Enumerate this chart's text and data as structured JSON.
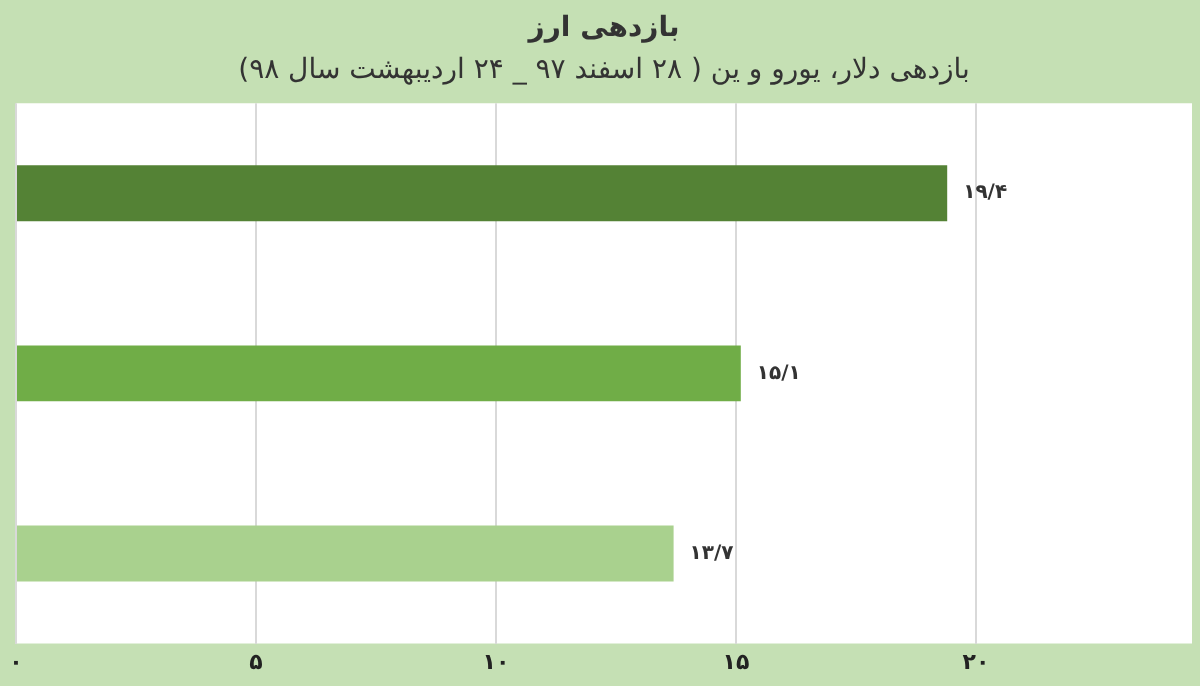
{
  "chart_data": {
    "type": "bar",
    "orientation": "horizontal",
    "title": "بازدهی ارز",
    "subtitle": "بازدهی دلار، یورو و ین ( ۲۸ اسفند ۹۷ _ ۲۴ اردیبهشت سال ۹۸)",
    "categories": [
      null,
      null,
      null
    ],
    "values": [
      19.4,
      15.1,
      13.7
    ],
    "colors": [
      "#548235",
      "#70ad47",
      "#a9d18e"
    ],
    "value_labels": [
      "۱۹/۴",
      "۱۵/۱",
      "۱۳/۷"
    ],
    "xlim": [
      0,
      24.5
    ],
    "xticks": [
      {
        "value": 0,
        "label": "۰"
      },
      {
        "value": 5,
        "label": "۵"
      },
      {
        "value": 10,
        "label": "۱۰"
      },
      {
        "value": 15,
        "label": "۱۵"
      },
      {
        "value": 20,
        "label": "۲۰"
      }
    ],
    "grid": "x",
    "legend": false
  }
}
